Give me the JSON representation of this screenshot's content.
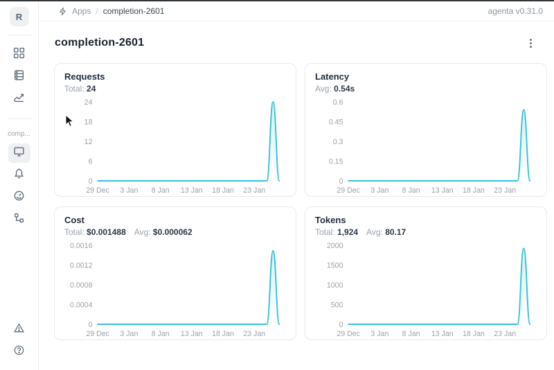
{
  "topbar": {
    "breadcrumb": {
      "section": "Apps",
      "separator": "/",
      "current": "completion-2601"
    },
    "version": "agenta v0.31.0"
  },
  "sidebar": {
    "logo_letter": "R",
    "app_label": "comp..."
  },
  "page": {
    "title": "completion-2601"
  },
  "chart_data": [
    {
      "type": "area",
      "title": "Requests",
      "stats": [
        {
          "label": "Total:",
          "value": "24"
        }
      ],
      "x_tick_labels": [
        "29 Dec",
        "3 Jan",
        "8 Jan",
        "13 Jan",
        "18 Jan",
        "23 Jan"
      ],
      "x_tick_positions": [
        0,
        5,
        10,
        15,
        20,
        25
      ],
      "y_ticks": [
        "0",
        "6",
        "12",
        "18",
        "24"
      ],
      "ylim": [
        0,
        24
      ],
      "grid": false,
      "legend": false,
      "line_color": "#38c2d9",
      "series": [
        {
          "name": "requests",
          "values": [
            0,
            0,
            0,
            0,
            0,
            0,
            0,
            0,
            0,
            0,
            0,
            0,
            0,
            0,
            0,
            0,
            0,
            0,
            0,
            0,
            0,
            0,
            0,
            0,
            0,
            0,
            0,
            0,
            24,
            0
          ]
        }
      ]
    },
    {
      "type": "area",
      "title": "Latency",
      "stats": [
        {
          "label": "Avg:",
          "value": "0.54s"
        }
      ],
      "x_tick_labels": [
        "29 Dec",
        "3 Jan",
        "8 Jan",
        "13 Jan",
        "18 Jan",
        "23 Jan"
      ],
      "x_tick_positions": [
        0,
        5,
        10,
        15,
        20,
        25
      ],
      "y_ticks": [
        "0",
        "0.15",
        "0.3",
        "0.45",
        "0.6"
      ],
      "ylim": [
        0,
        0.6
      ],
      "grid": false,
      "legend": false,
      "line_color": "#38c2d9",
      "series": [
        {
          "name": "latency_s",
          "values": [
            0,
            0,
            0,
            0,
            0,
            0,
            0,
            0,
            0,
            0,
            0,
            0,
            0,
            0,
            0,
            0,
            0,
            0,
            0,
            0,
            0,
            0,
            0,
            0,
            0,
            0,
            0,
            0,
            0.54,
            0
          ]
        }
      ]
    },
    {
      "type": "area",
      "title": "Cost",
      "stats": [
        {
          "label": "Total:",
          "value": "$0.001488"
        },
        {
          "label": "Avg:",
          "value": "$0.000062"
        }
      ],
      "x_tick_labels": [
        "29 Dec",
        "3 Jan",
        "8 Jan",
        "13 Jan",
        "18 Jan",
        "23 Jan"
      ],
      "x_tick_positions": [
        0,
        5,
        10,
        15,
        20,
        25
      ],
      "y_ticks": [
        "0",
        "0.0004",
        "0.0008",
        "0.0012",
        "0.0016"
      ],
      "ylim": [
        0,
        0.0016
      ],
      "grid": false,
      "legend": false,
      "line_color": "#38c2d9",
      "series": [
        {
          "name": "cost_usd",
          "values": [
            0,
            0,
            0,
            0,
            0,
            0,
            0,
            0,
            0,
            0,
            0,
            0,
            0,
            0,
            0,
            0,
            0,
            0,
            0,
            0,
            0,
            0,
            0,
            0,
            0,
            0,
            0,
            0,
            0.001488,
            0
          ]
        }
      ]
    },
    {
      "type": "area",
      "title": "Tokens",
      "stats": [
        {
          "label": "Total:",
          "value": "1,924"
        },
        {
          "label": "Avg:",
          "value": "80.17"
        }
      ],
      "x_tick_labels": [
        "29 Dec",
        "3 Jan",
        "8 Jan",
        "13 Jan",
        "18 Jan",
        "23 Jan"
      ],
      "x_tick_positions": [
        0,
        5,
        10,
        15,
        20,
        25
      ],
      "y_ticks": [
        "0",
        "500",
        "1000",
        "1500",
        "2000"
      ],
      "ylim": [
        0,
        2000
      ],
      "grid": false,
      "legend": false,
      "line_color": "#38c2d9",
      "series": [
        {
          "name": "tokens",
          "values": [
            0,
            0,
            0,
            0,
            0,
            0,
            0,
            0,
            0,
            0,
            0,
            0,
            0,
            0,
            0,
            0,
            0,
            0,
            0,
            0,
            0,
            0,
            0,
            0,
            0,
            0,
            0,
            0,
            1924,
            0
          ]
        }
      ]
    }
  ]
}
